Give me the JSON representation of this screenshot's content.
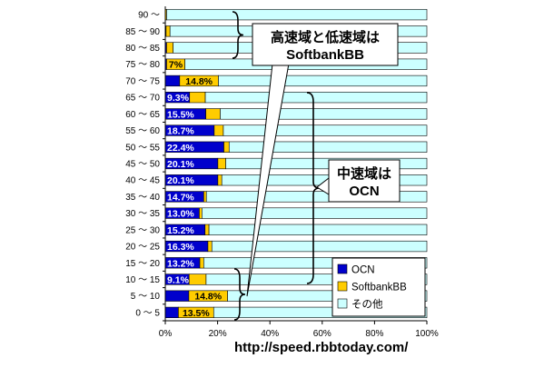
{
  "chart_data": {
    "type": "bar",
    "orientation": "horizontal",
    "stacked": "percent",
    "categories": [
      "0 ～ 5",
      "5 ～ 10",
      "10 ～ 15",
      "15 ～ 20",
      "20 ～ 25",
      "25 ～ 30",
      "30 ～ 35",
      "35 ～ 40",
      "40 ～ 45",
      "45 ～ 50",
      "50 ～ 55",
      "55 ～ 60",
      "60 ～ 65",
      "65 ～ 70",
      "70 ～ 75",
      "75 ～ 80",
      "80 ～ 85",
      "85 ～ 90",
      "90 ～"
    ],
    "series": [
      {
        "name": "OCN",
        "color": "#0000cc",
        "values": [
          5.0,
          9.0,
          9.1,
          13.2,
          16.3,
          15.2,
          13.0,
          14.7,
          20.1,
          20.1,
          22.4,
          18.7,
          15.5,
          9.3,
          5.5,
          0.5,
          0.5,
          0.3,
          0.0
        ]
      },
      {
        "name": "SoftbankBB",
        "color": "#ffcc00",
        "values": [
          13.5,
          14.8,
          6.5,
          1.5,
          1.5,
          1.5,
          1.0,
          1.0,
          1.5,
          3.0,
          2.0,
          3.5,
          5.5,
          6.0,
          14.8,
          7.0,
          2.5,
          1.5,
          0.5
        ]
      },
      {
        "name": "その他",
        "color": "#ccffff",
        "values": [
          81.5,
          76.2,
          84.4,
          85.3,
          82.2,
          83.3,
          86.0,
          84.3,
          78.4,
          76.9,
          75.6,
          77.8,
          79.0,
          84.7,
          79.7,
          92.5,
          97.0,
          98.2,
          99.5
        ]
      }
    ],
    "data_labels": {
      "OCN": {
        "0": "",
        "1": "",
        "2": "9.1%",
        "3": "13.2%",
        "4": "16.3%",
        "5": "15.2%",
        "6": "13.0%",
        "7": "14.7%",
        "8": "20.1%",
        "9": "20.1%",
        "10": "22.4%",
        "11": "18.7%",
        "12": "15.5%",
        "13": "9.3%"
      },
      "SoftbankBB": {
        "0": "13.5%",
        "1": "14.8%",
        "14": "14.8%",
        "15": "7%"
      }
    },
    "xlim": [
      0,
      100
    ],
    "xticks": [
      "0%",
      "20%",
      "40%",
      "60%",
      "80%",
      "100%"
    ],
    "grid": false,
    "legend_position": "bottom-right",
    "annotations": [
      {
        "text_lines": [
          "高速域と低速域は",
          "SoftbankBB"
        ]
      },
      {
        "text_lines": [
          "中速域は",
          "OCN"
        ]
      }
    ]
  },
  "footer": {
    "url": "http://speed.rbbtoday.com/"
  }
}
